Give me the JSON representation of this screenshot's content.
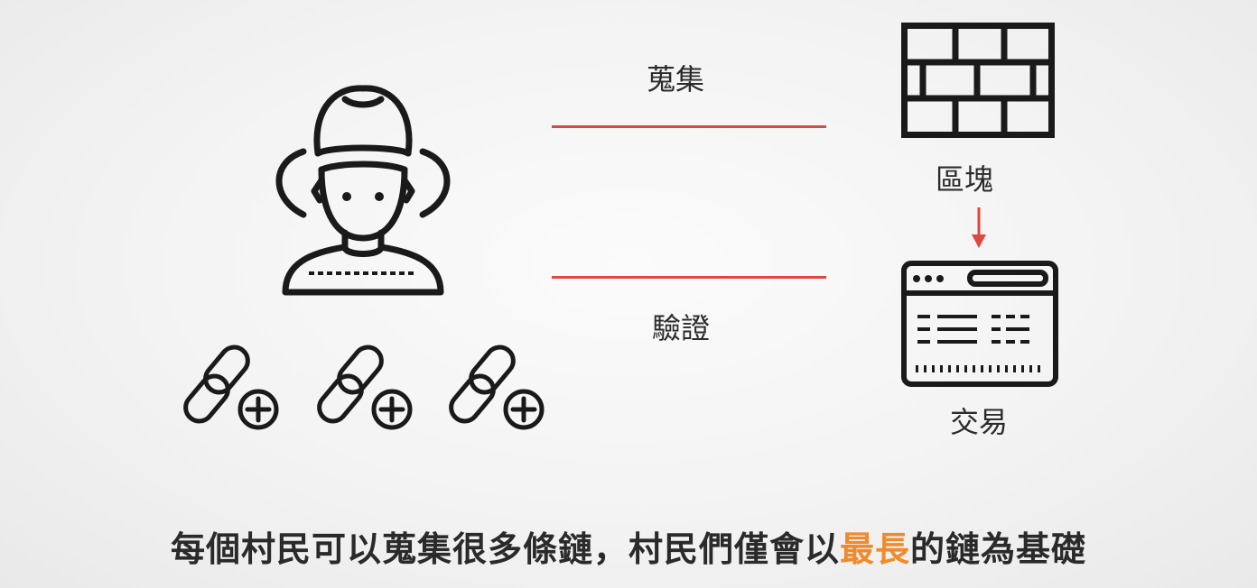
{
  "labels": {
    "collect": "蒐集",
    "verify": "驗證",
    "block": "區塊",
    "transaction": "交易"
  },
  "caption": {
    "before": "每個村民可以蒐集很多條鏈，村民們僅會以",
    "highlight": "最長",
    "after": "的鏈為基礎"
  },
  "colors": {
    "accent_line": "#e0473f",
    "highlight_text": "#f08a2a",
    "icon_stroke": "#1a1a1a"
  },
  "icons": {
    "person": "farmer-hat-person-icon",
    "block": "brick-wall-icon",
    "transaction": "browser-window-icon",
    "chain": "link-add-icon"
  }
}
